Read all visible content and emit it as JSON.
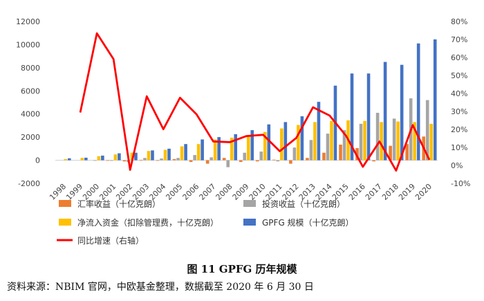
{
  "caption": "图 11   GPFG 历年规模",
  "source": "资料来源：NBIM 官网，中欧基金整理，数据截至 2020 年 6 月 30 日",
  "chart_data": {
    "type": "bar",
    "categories": [
      "1998",
      "1999",
      "2000",
      "2001",
      "2002",
      "2003",
      "2004",
      "2005",
      "2006",
      "2007",
      "2008",
      "2009",
      "2010",
      "2011",
      "2012",
      "2013",
      "2014",
      "2015",
      "2016",
      "2017",
      "2018",
      "2019",
      "2020"
    ],
    "ylim_left": [
      -2000,
      12000
    ],
    "ytick_left": [
      -2000,
      0,
      2000,
      4000,
      6000,
      8000,
      10000,
      12000
    ],
    "ylim_right": [
      -10,
      80
    ],
    "ytick_right": [
      -10,
      0,
      10,
      20,
      30,
      40,
      50,
      60,
      70,
      80
    ],
    "ytick_right_labels": [
      "-10%",
      "0%",
      "10%",
      "20%",
      "30%",
      "40%",
      "50%",
      "60%",
      "70%",
      "80%"
    ],
    "grid": false,
    "legend_position": "bottom",
    "series": [
      {
        "name": "汇率收益（十亿克朗）",
        "kind": "bar",
        "axis": "left",
        "color": "#ED7D31",
        "values": [
          0,
          0,
          0,
          -10,
          -100,
          30,
          -30,
          100,
          -150,
          -300,
          200,
          -150,
          -100,
          50,
          -300,
          200,
          650,
          1350,
          1050,
          -100,
          1250,
          1400,
          2050
        ]
      },
      {
        "name": "投资收益（十亿克朗）",
        "kind": "bar",
        "axis": "left",
        "color": "#A5A5A5",
        "values": [
          0,
          0,
          -10,
          -50,
          -150,
          200,
          150,
          200,
          450,
          250,
          -600,
          650,
          750,
          -100,
          1100,
          1750,
          2300,
          2600,
          3150,
          4100,
          3600,
          5350,
          5200
        ]
      },
      {
        "name": "净流入资金（扣除管理费，十亿克朗）",
        "kind": "bar",
        "axis": "left",
        "color": "#FFC000",
        "values": [
          100,
          200,
          350,
          500,
          650,
          800,
          900,
          1200,
          1400,
          1800,
          1950,
          2150,
          2450,
          2750,
          3050,
          3300,
          3400,
          3450,
          3400,
          3300,
          3350,
          3300,
          3150
        ]
      },
      {
        "name": "GPFG 规模（十亿克朗）",
        "kind": "bar",
        "axis": "left",
        "color": "#4472C4",
        "values": [
          170,
          220,
          400,
          600,
          650,
          850,
          1000,
          1400,
          1800,
          2000,
          2250,
          2600,
          3100,
          3300,
          3800,
          5050,
          6450,
          7500,
          7500,
          8500,
          8250,
          10100,
          10450
        ]
      },
      {
        "name": "同比增速（右轴）",
        "kind": "line",
        "axis": "right",
        "color": "#FF0000",
        "values": [
          null,
          29.4,
          73.4,
          59.1,
          -2.5,
          38.4,
          20.1,
          37.6,
          28.3,
          13.3,
          12.9,
          16.3,
          17,
          7.9,
          15.3,
          32.3,
          27.7,
          16.3,
          -0.8,
          13.3,
          -2.9,
          22.4,
          3.1
        ]
      }
    ]
  }
}
